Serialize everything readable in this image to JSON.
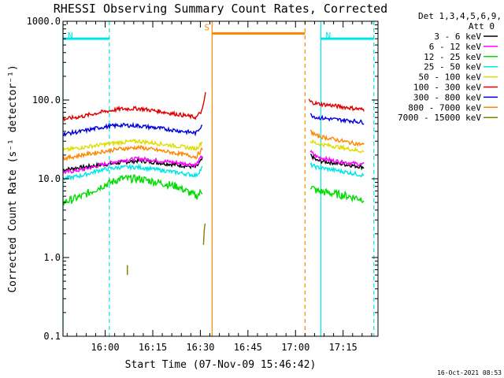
{
  "chart_data": {
    "type": "line",
    "title": "RHESSI Observing Summary Count Rates, Corrected",
    "xlabel": "Start Time (07-Nov-09 15:46:42)",
    "ylabel": "Corrected Count Rate (s⁻¹ detector⁻¹)",
    "y_scale": "log",
    "ylim": [
      0.1,
      1000
    ],
    "y_ticks": [
      "1000.0",
      "100.0",
      "10.0",
      "1.0",
      "0.1"
    ],
    "y_tick_values": [
      1000,
      100,
      10,
      1,
      0.1
    ],
    "xlim": [
      "15:46:42",
      "17:26:00"
    ],
    "x_ticks": [
      "16:00",
      "16:15",
      "16:30",
      "16:45",
      "17:00",
      "17:15"
    ],
    "x_tick_minutes": [
      13.3,
      28.3,
      43.3,
      58.3,
      73.3,
      88.3
    ],
    "x_range_minutes": [
      0,
      99.3
    ],
    "legend": {
      "header": [
        "Det 1,3,4,5,6,9,",
        "Att 0"
      ],
      "placement": "outside-right"
    },
    "series": [
      {
        "name": "3 - 6 keV",
        "color": "#000000",
        "segments": [
          {
            "x": [
              0,
              6,
              12,
              18,
              24,
              30,
              36,
              42,
              44
            ],
            "y": [
              13,
              14,
              15,
              16,
              17,
              16,
              15,
              14,
              18
            ]
          },
          {
            "x": [
              78,
              80,
              85,
              90,
              95
            ],
            "y": [
              20,
              17,
              16,
              15,
              14
            ]
          }
        ]
      },
      {
        "name": "6 - 12 keV",
        "color": "#ff00ff",
        "segments": [
          {
            "x": [
              0,
              6,
              12,
              18,
              24,
              30,
              36,
              42,
              44
            ],
            "y": [
              12,
              13,
              15,
              17,
              18,
              17,
              16,
              15,
              20
            ]
          },
          {
            "x": [
              78,
              80,
              85,
              90,
              95
            ],
            "y": [
              22,
              19,
              17,
              16,
              15
            ]
          }
        ]
      },
      {
        "name": "12 - 25 keV",
        "color": "#00dd00",
        "segments": [
          {
            "x": [
              0,
              6,
              12,
              18,
              24,
              30,
              36,
              42,
              44
            ],
            "y": [
              5,
              6,
              8,
              10,
              10,
              9,
              8,
              6,
              7
            ]
          },
          {
            "x": [
              78,
              80,
              85,
              90,
              95
            ],
            "y": [
              8,
              7,
              6.5,
              6,
              5.5
            ]
          }
        ]
      },
      {
        "name": "25 - 50 keV",
        "color": "#00e5e5",
        "segments": [
          {
            "x": [
              0,
              6,
              12,
              18,
              24,
              30,
              36,
              42,
              44
            ],
            "y": [
              10,
              11,
              13,
              14,
              14,
              13,
              12,
              11,
              14
            ]
          },
          {
            "x": [
              78,
              80,
              85,
              90,
              95
            ],
            "y": [
              15,
              14,
              13,
              12,
              11
            ]
          }
        ]
      },
      {
        "name": "50 - 100 keV",
        "color": "#dddd00",
        "segments": [
          {
            "x": [
              0,
              6,
              12,
              18,
              24,
              30,
              36,
              42,
              44
            ],
            "y": [
              23,
              25,
              27,
              29,
              30,
              28,
              26,
              24,
              30
            ]
          },
          {
            "x": [
              78,
              80,
              85,
              90,
              95
            ],
            "y": [
              30,
              28,
              26,
              24,
              22
            ]
          }
        ]
      },
      {
        "name": "100 - 300 keV",
        "color": "#e00000",
        "segments": [
          {
            "x": [
              0,
              6,
              12,
              18,
              24,
              30,
              36,
              42,
              44,
              45
            ],
            "y": [
              57,
              62,
              70,
              77,
              78,
              72,
              66,
              60,
              75,
              130
            ]
          },
          {
            "x": [
              77.5,
              78,
              80,
              85,
              90,
              95
            ],
            "y": [
              100,
              95,
              90,
              85,
              80,
              75
            ]
          }
        ]
      },
      {
        "name": "300 - 800 keV",
        "color": "#0000dd",
        "segments": [
          {
            "x": [
              0,
              6,
              12,
              18,
              24,
              30,
              36,
              42,
              44
            ],
            "y": [
              37,
              40,
              45,
              48,
              47,
              44,
              41,
              38,
              50
            ]
          },
          {
            "x": [
              78,
              80,
              85,
              90,
              95
            ],
            "y": [
              65,
              60,
              57,
              55,
              52
            ]
          }
        ]
      },
      {
        "name": "800 - 7000 keV",
        "color": "#ff8800",
        "segments": [
          {
            "x": [
              0,
              6,
              12,
              18,
              24,
              30,
              36,
              42,
              44
            ],
            "y": [
              18,
              20,
              22,
              24,
              25,
              23,
              21,
              19,
              24
            ]
          },
          {
            "x": [
              78,
              80,
              85,
              90,
              95
            ],
            "y": [
              40,
              35,
              32,
              29,
              27
            ]
          }
        ]
      },
      {
        "name": "7000 - 15000 keV",
        "color": "#808000",
        "segments": [
          {
            "x": [
              20.3,
              20.3
            ],
            "y": [
              0.6,
              0.8
            ]
          },
          {
            "x": [
              44.3,
              44.6,
              45
            ],
            "y": [
              1.5,
              2.5,
              3.0
            ]
          }
        ]
      }
    ],
    "flags": [
      {
        "label": "N",
        "color": "#00e5e5",
        "level": 600,
        "x_start": 0,
        "x_end": 14.6,
        "dashed_at": [
          14.6
        ]
      },
      {
        "label": "N",
        "color": "#00e5e5",
        "level": 600,
        "x_start": 81.3,
        "x_end": 98,
        "dashed_at": [
          98
        ]
      },
      {
        "label": "S",
        "color": "#ff8800",
        "level": 700,
        "x_start": 47,
        "x_end": 76.3,
        "dashed_at": [
          76.3
        ]
      }
    ],
    "solid_lines": [
      {
        "x": 0,
        "color": "#00e5e5"
      },
      {
        "x": 81.3,
        "color": "#00e5e5"
      },
      {
        "x": 47,
        "color": "#ff8800"
      }
    ],
    "timestamp": "16-Oct-2021 08:53"
  }
}
